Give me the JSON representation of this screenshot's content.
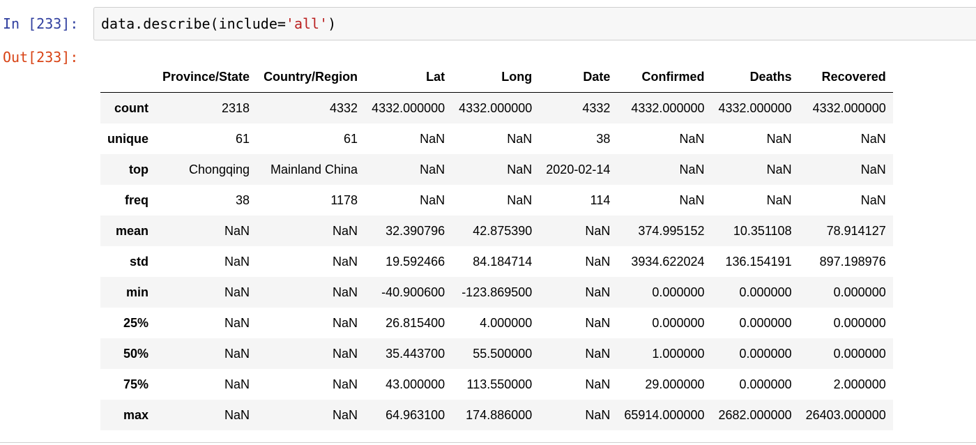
{
  "input_prompt": "In [233]:",
  "output_prompt": "Out[233]:",
  "code": {
    "before": "data.describe(include=",
    "string": "'all'",
    "after": ")"
  },
  "table": {
    "columns": [
      "",
      "Province/State",
      "Country/Region",
      "Lat",
      "Long",
      "Date",
      "Confirmed",
      "Deaths",
      "Recovered"
    ],
    "rows": [
      {
        "index": "count",
        "values": [
          "2318",
          "4332",
          "4332.000000",
          "4332.000000",
          "4332",
          "4332.000000",
          "4332.000000",
          "4332.000000"
        ]
      },
      {
        "index": "unique",
        "values": [
          "61",
          "61",
          "NaN",
          "NaN",
          "38",
          "NaN",
          "NaN",
          "NaN"
        ]
      },
      {
        "index": "top",
        "values": [
          "Chongqing",
          "Mainland China",
          "NaN",
          "NaN",
          "2020-02-14",
          "NaN",
          "NaN",
          "NaN"
        ]
      },
      {
        "index": "freq",
        "values": [
          "38",
          "1178",
          "NaN",
          "NaN",
          "114",
          "NaN",
          "NaN",
          "NaN"
        ]
      },
      {
        "index": "mean",
        "values": [
          "NaN",
          "NaN",
          "32.390796",
          "42.875390",
          "NaN",
          "374.995152",
          "10.351108",
          "78.914127"
        ]
      },
      {
        "index": "std",
        "values": [
          "NaN",
          "NaN",
          "19.592466",
          "84.184714",
          "NaN",
          "3934.622024",
          "136.154191",
          "897.198976"
        ]
      },
      {
        "index": "min",
        "values": [
          "NaN",
          "NaN",
          "-40.900600",
          "-123.869500",
          "NaN",
          "0.000000",
          "0.000000",
          "0.000000"
        ]
      },
      {
        "index": "25%",
        "values": [
          "NaN",
          "NaN",
          "26.815400",
          "4.000000",
          "NaN",
          "0.000000",
          "0.000000",
          "0.000000"
        ]
      },
      {
        "index": "50%",
        "values": [
          "NaN",
          "NaN",
          "35.443700",
          "55.500000",
          "NaN",
          "1.000000",
          "0.000000",
          "0.000000"
        ]
      },
      {
        "index": "75%",
        "values": [
          "NaN",
          "NaN",
          "43.000000",
          "113.550000",
          "NaN",
          "29.000000",
          "0.000000",
          "2.000000"
        ]
      },
      {
        "index": "max",
        "values": [
          "NaN",
          "NaN",
          "64.963100",
          "174.886000",
          "NaN",
          "65914.000000",
          "2682.000000",
          "26403.000000"
        ]
      }
    ]
  }
}
